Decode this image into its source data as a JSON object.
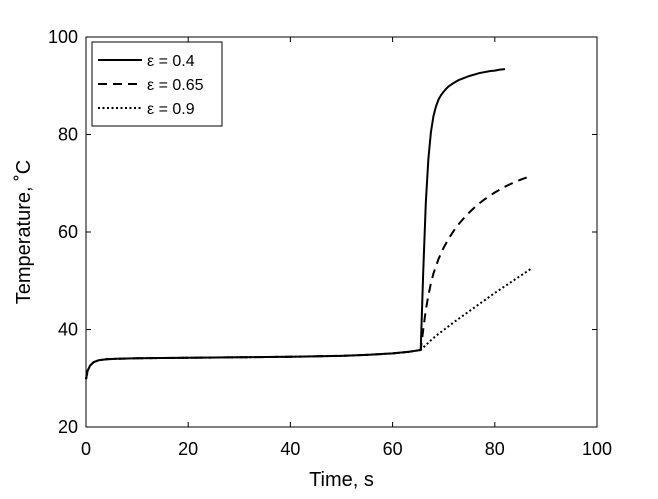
{
  "chart_data": {
    "type": "line",
    "xlabel": "Time, s",
    "ylabel": "Temperature, ˚C",
    "xlim": [
      0,
      100
    ],
    "ylim": [
      20,
      100
    ],
    "xticks": [
      0,
      20,
      40,
      60,
      80,
      100
    ],
    "yticks": [
      20,
      40,
      60,
      80,
      100
    ],
    "grid": false,
    "legend_position": "top-left",
    "line_color": "#000000",
    "series": [
      {
        "name": "ε = 0.4",
        "style": "solid",
        "x": [
          0,
          0.3,
          0.8,
          1.5,
          2.5,
          4,
          6,
          10,
          20,
          30,
          40,
          50,
          55,
          60,
          63,
          65.5,
          66.0,
          66.5,
          67.0,
          67.5,
          68.0,
          68.5,
          69.0,
          69.5,
          70.0,
          70.5,
          71.0,
          72.0,
          73.0,
          74.0,
          75.0,
          76.0,
          77.0,
          78.0,
          79.0,
          80.0,
          81.0,
          82.0
        ],
        "y": [
          29.8,
          31.5,
          32.6,
          33.3,
          33.7,
          33.9,
          34.0,
          34.1,
          34.2,
          34.3,
          34.4,
          34.6,
          34.8,
          35.1,
          35.4,
          35.8,
          52.0,
          66.0,
          75.0,
          80.5,
          83.8,
          85.8,
          87.2,
          88.1,
          88.8,
          89.4,
          89.9,
          90.6,
          91.2,
          91.6,
          92.0,
          92.3,
          92.6,
          92.8,
          93.0,
          93.1,
          93.3,
          93.4
        ]
      },
      {
        "name": "ε = 0.65",
        "style": "dashed",
        "x": [
          0,
          0.3,
          0.8,
          1.5,
          2.5,
          4,
          6,
          10,
          20,
          30,
          40,
          50,
          55,
          60,
          63,
          65.5,
          66.0,
          66.5,
          67.0,
          67.5,
          68.0,
          69.0,
          70.0,
          71.0,
          72.0,
          73.0,
          74.0,
          75.0,
          76.0,
          77.0,
          78.0,
          79.0,
          80.0,
          81.0,
          82.0,
          83.0,
          84.0,
          85.0,
          86.0,
          87.0
        ],
        "y": [
          29.8,
          31.5,
          32.6,
          33.3,
          33.7,
          33.9,
          34.0,
          34.1,
          34.2,
          34.3,
          34.4,
          34.6,
          34.8,
          35.1,
          35.4,
          35.8,
          40.0,
          44.0,
          47.0,
          49.5,
          51.5,
          54.5,
          56.8,
          58.7,
          60.3,
          61.7,
          62.9,
          64.0,
          65.0,
          65.9,
          66.7,
          67.4,
          68.1,
          68.7,
          69.3,
          69.8,
          70.3,
          70.7,
          71.1,
          71.4
        ]
      },
      {
        "name": "ε = 0.9",
        "style": "dotted",
        "x": [
          0,
          0.3,
          0.8,
          1.5,
          2.5,
          4,
          6,
          10,
          20,
          30,
          40,
          50,
          55,
          60,
          63,
          65.5,
          66.5,
          67.5,
          68.5,
          70.0,
          72.0,
          74.0,
          76.0,
          78.0,
          80.0,
          82.0,
          84.0,
          86.0,
          87.0
        ],
        "y": [
          29.8,
          31.5,
          32.6,
          33.3,
          33.7,
          33.9,
          34.0,
          34.1,
          34.2,
          34.3,
          34.4,
          34.6,
          34.8,
          35.1,
          35.4,
          35.8,
          36.8,
          37.8,
          38.7,
          39.9,
          41.5,
          43.0,
          44.5,
          46.0,
          47.5,
          48.9,
          50.3,
          51.7,
          52.4
        ]
      }
    ]
  }
}
